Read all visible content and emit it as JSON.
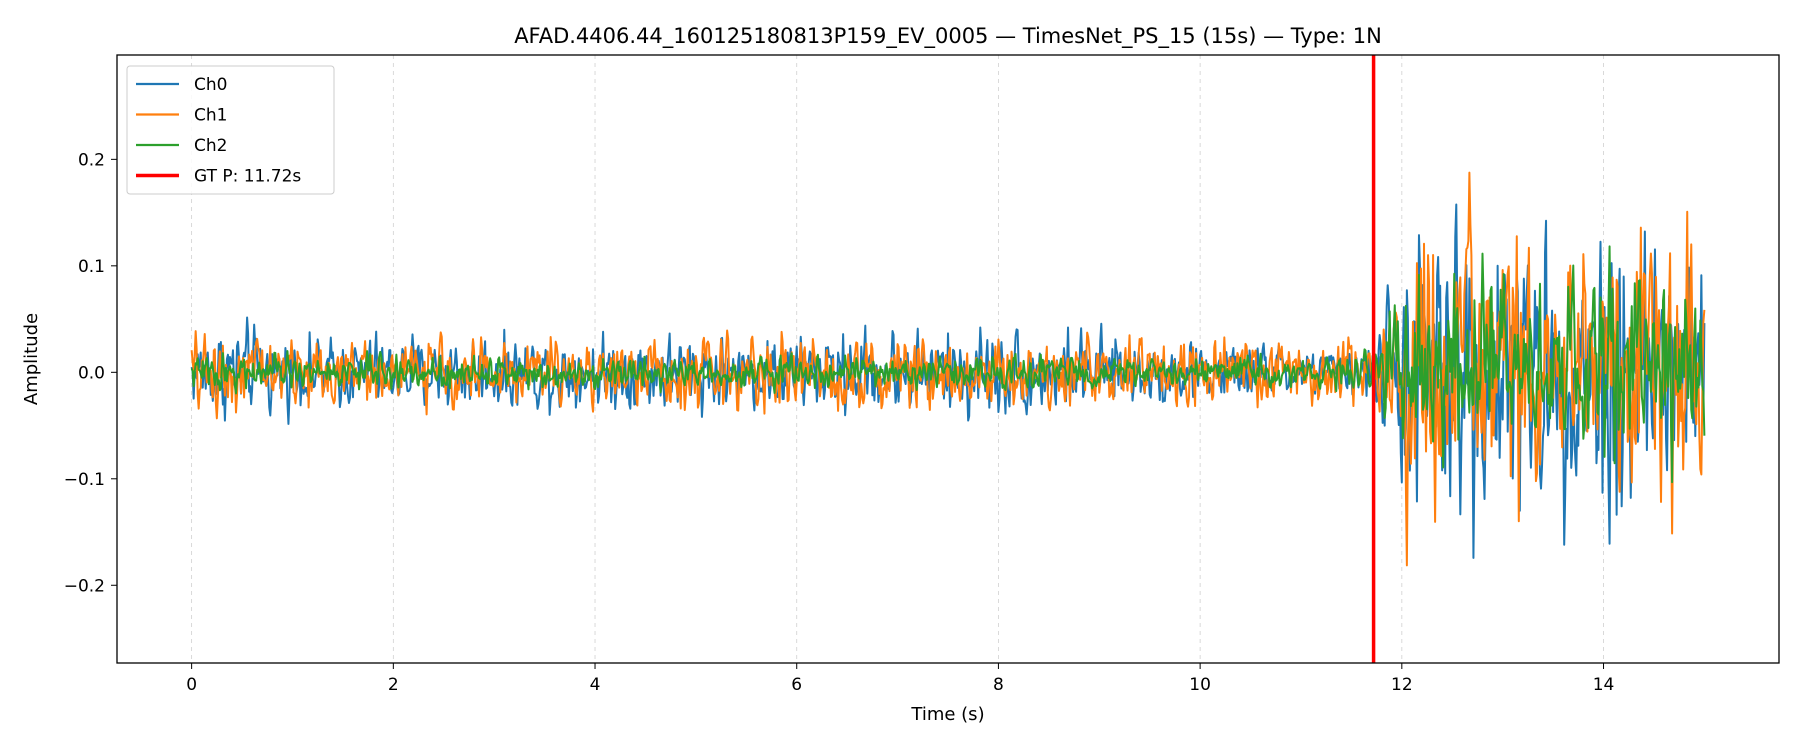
{
  "chart_data": {
    "type": "line",
    "title": "AFAD.4406.44_160125180813P159_EV_0005 — TimesNet_PS_15 (15s) — Type: 1N",
    "xlabel": "Time (s)",
    "ylabel": "Amplitude",
    "xlim": [
      -0.74,
      15.74
    ],
    "ylim": [
      -0.273,
      0.298
    ],
    "x_ticks": [
      0,
      2,
      4,
      6,
      8,
      10,
      12,
      14
    ],
    "x_tick_labels": [
      "0",
      "2",
      "4",
      "6",
      "8",
      "10",
      "12",
      "14"
    ],
    "y_ticks": [
      -0.2,
      -0.1,
      0.0,
      0.1,
      0.2
    ],
    "y_tick_labels": [
      "−0.2",
      "−0.1",
      "0.0",
      "0.1",
      "0.2"
    ],
    "grid": "vertical dashed at x ticks",
    "legend_position": "upper-left",
    "sample_step_s": 0.01,
    "duration_s": 15,
    "series": [
      {
        "name": "Ch0",
        "color": "#1f77b4",
        "envelope": [
          {
            "t": 0,
            "amp": 0.045
          },
          {
            "t": 0.4,
            "amp": 0.06
          },
          {
            "t": 1.0,
            "amp": 0.04
          },
          {
            "t": 3.0,
            "amp": 0.045
          },
          {
            "t": 6.0,
            "amp": 0.045
          },
          {
            "t": 7.8,
            "amp": 0.055
          },
          {
            "t": 9.5,
            "amp": 0.04
          },
          {
            "t": 11.6,
            "amp": 0.03
          },
          {
            "t": 11.72,
            "amp": 0.04
          },
          {
            "t": 12.0,
            "amp": 0.15
          },
          {
            "t": 12.5,
            "amp": 0.19
          },
          {
            "t": 13.5,
            "amp": 0.15
          },
          {
            "t": 14.2,
            "amp": 0.2
          },
          {
            "t": 15.0,
            "amp": 0.15
          }
        ]
      },
      {
        "name": "Ch1",
        "color": "#ff7f0e",
        "envelope": [
          {
            "t": 0,
            "amp": 0.045
          },
          {
            "t": 0.3,
            "amp": 0.05
          },
          {
            "t": 2.0,
            "amp": 0.035
          },
          {
            "t": 5.4,
            "amp": 0.045
          },
          {
            "t": 8.0,
            "amp": 0.045
          },
          {
            "t": 11.6,
            "amp": 0.035
          },
          {
            "t": 11.72,
            "amp": 0.045
          },
          {
            "t": 12.0,
            "amp": 0.16
          },
          {
            "t": 12.4,
            "amp": 0.19
          },
          {
            "t": 13.5,
            "amp": 0.15
          },
          {
            "t": 15.0,
            "amp": 0.17
          }
        ]
      },
      {
        "name": "Ch2",
        "color": "#2ca02c",
        "envelope": [
          {
            "t": 0,
            "amp": 0.02
          },
          {
            "t": 11.6,
            "amp": 0.018
          },
          {
            "t": 11.72,
            "amp": 0.03
          },
          {
            "t": 12.0,
            "amp": 0.1
          },
          {
            "t": 13.0,
            "amp": 0.11
          },
          {
            "t": 15.0,
            "amp": 0.1
          }
        ]
      }
    ],
    "markers": [
      {
        "name": "GT P: 11.72s",
        "x": 11.72,
        "color": "#ff0000"
      }
    ]
  }
}
